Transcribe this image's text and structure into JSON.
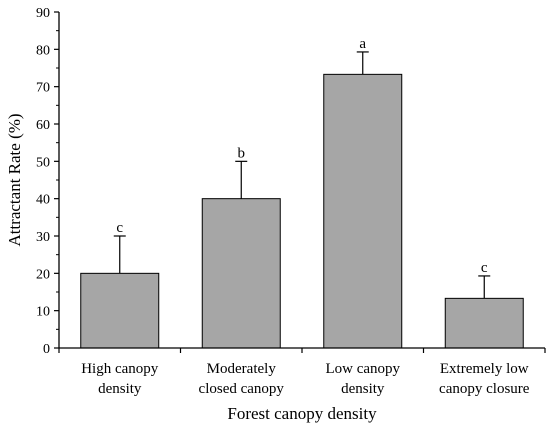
{
  "chart_data": {
    "type": "bar",
    "categories": [
      [
        "High canopy",
        "density"
      ],
      [
        "Moderately",
        "closed canopy"
      ],
      [
        "Low canopy",
        "density"
      ],
      [
        "Extremely low",
        "canopy closure"
      ]
    ],
    "values": [
      20,
      40,
      73.3,
      13.3
    ],
    "errors": [
      10,
      10,
      6,
      6
    ],
    "significance": [
      "c",
      "b",
      "a",
      "c"
    ],
    "xlabel": "Forest canopy density",
    "ylabel": "Attractant Rate (%)",
    "ylim": [
      0,
      90
    ],
    "yticks": [
      0,
      10,
      20,
      30,
      40,
      50,
      60,
      70,
      80,
      90
    ],
    "bar_color": "#a6a6a6",
    "grid": false,
    "legend": "none"
  }
}
